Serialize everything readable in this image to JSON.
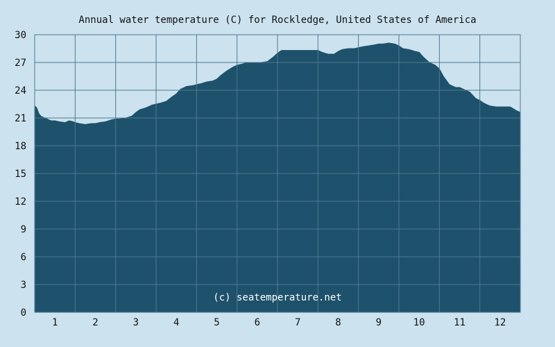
{
  "colors": {
    "background": "#cce2ee",
    "area_fill": "#1e516b",
    "grid": "#4d7a90",
    "axis": "#4d7a90",
    "text": "#111111",
    "watermark": "#ffffff"
  },
  "chart_data": {
    "type": "area",
    "title": "Annual water temperature (C) for Rockledge, United States of America",
    "watermark": "(c) seatemperature.net",
    "xlabel": "",
    "ylabel": "",
    "x_tick_labels": [
      "1",
      "2",
      "3",
      "4",
      "5",
      "6",
      "7",
      "8",
      "9",
      "10",
      "11",
      "12"
    ],
    "y_tick_labels": [
      "0",
      "3",
      "6",
      "9",
      "12",
      "15",
      "18",
      "21",
      "24",
      "27",
      "30"
    ],
    "ylim": [
      0,
      30
    ],
    "xlim": [
      0.5,
      12.5
    ],
    "grid": true,
    "legend": "none",
    "series": [
      {
        "x": [
          0.5,
          0.55,
          0.6,
          0.65,
          0.75,
          0.9,
          1.0,
          1.1,
          1.25,
          1.35,
          1.45,
          1.5,
          1.6,
          1.75,
          1.9,
          2.0,
          2.1,
          2.25,
          2.4,
          2.5,
          2.6,
          2.75,
          2.9,
          3.0,
          3.1,
          3.25,
          3.4,
          3.5,
          3.6,
          3.75,
          3.9,
          4.0,
          4.1,
          4.25,
          4.4,
          4.5,
          4.6,
          4.75,
          4.9,
          5.0,
          5.1,
          5.25,
          5.4,
          5.5,
          5.6,
          5.75,
          5.9,
          6.0,
          6.1,
          6.25,
          6.4,
          6.5,
          6.6,
          6.75,
          6.9,
          7.0,
          7.1,
          7.25,
          7.4,
          7.5,
          7.6,
          7.75,
          7.9,
          8.0,
          8.1,
          8.25,
          8.4,
          8.5,
          8.6,
          8.75,
          8.9,
          9.0,
          9.1,
          9.25,
          9.4,
          9.5,
          9.6,
          9.75,
          9.9,
          10.0,
          10.1,
          10.25,
          10.4,
          10.5,
          10.6,
          10.75,
          10.9,
          11.0,
          11.1,
          11.25,
          11.4,
          11.5,
          11.6,
          11.75,
          11.9,
          12.0,
          12.1,
          12.25,
          12.4,
          12.5
        ],
        "values": [
          22.3,
          22.1,
          21.5,
          21.2,
          21.0,
          20.7,
          20.7,
          20.6,
          20.5,
          20.7,
          20.6,
          20.5,
          20.4,
          20.3,
          20.4,
          20.4,
          20.5,
          20.6,
          20.8,
          20.9,
          20.9,
          21.0,
          21.2,
          21.6,
          21.9,
          22.1,
          22.4,
          22.5,
          22.6,
          22.8,
          23.3,
          23.6,
          24.1,
          24.4,
          24.5,
          24.6,
          24.7,
          24.9,
          25.0,
          25.2,
          25.6,
          26.1,
          26.5,
          26.7,
          26.8,
          27.0,
          27.0,
          27.0,
          27.0,
          27.1,
          27.6,
          28.0,
          28.3,
          28.3,
          28.3,
          28.3,
          28.3,
          28.3,
          28.3,
          28.3,
          28.1,
          27.9,
          27.9,
          28.2,
          28.4,
          28.5,
          28.5,
          28.6,
          28.7,
          28.8,
          28.9,
          29.0,
          29.0,
          29.1,
          29.0,
          28.8,
          28.5,
          28.4,
          28.2,
          28.1,
          27.6,
          27.0,
          26.7,
          26.3,
          25.5,
          24.6,
          24.3,
          24.3,
          24.1,
          23.8,
          23.1,
          22.9,
          22.6,
          22.3,
          22.2,
          22.2,
          22.2,
          22.2,
          21.8,
          21.6
        ]
      }
    ]
  }
}
